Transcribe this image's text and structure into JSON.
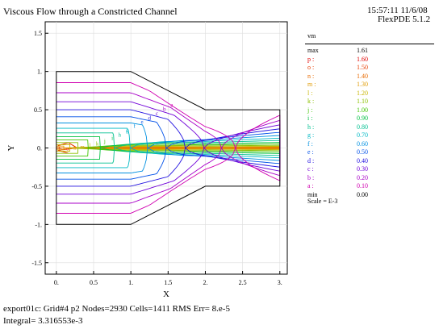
{
  "header": {
    "title": "Viscous Flow through a Constricted Channel",
    "timestamp": "15:57:11 11/6/08",
    "program": "FlexPDE 5.1.2"
  },
  "chart_data": {
    "type": "contour",
    "title": "Viscous Flow through a Constricted Channel",
    "xlabel": "X",
    "ylabel": "Y",
    "xlim": [
      -0.15,
      3.1
    ],
    "ylim": [
      -1.65,
      1.65
    ],
    "x_ticks": [
      "0.",
      "0.5",
      "1.",
      "1.5",
      "2.",
      "2.5",
      "3."
    ],
    "y_ticks": [
      "1.5",
      "1.",
      "0.5",
      "0.",
      "-0.5",
      "-1.",
      "-1.5"
    ],
    "variable": "vm",
    "scale": "Scale = E-3",
    "max": "1.61",
    "min": "0.00",
    "levels": [
      {
        "label": "p",
        "value": 1.6,
        "color": "#e00000"
      },
      {
        "label": "o",
        "value": 1.5,
        "color": "#e83c00"
      },
      {
        "label": "n",
        "value": 1.4,
        "color": "#e86a00"
      },
      {
        "label": "m",
        "value": 1.3,
        "color": "#e09a00"
      },
      {
        "label": "l",
        "value": 1.2,
        "color": "#c8b400"
      },
      {
        "label": "k",
        "value": 1.1,
        "color": "#8cc000"
      },
      {
        "label": "j",
        "value": 1.0,
        "color": "#40c400"
      },
      {
        "label": "i",
        "value": 0.9,
        "color": "#00c040"
      },
      {
        "label": "h",
        "value": 0.8,
        "color": "#00c090"
      },
      {
        "label": "g",
        "value": 0.7,
        "color": "#00b8c4"
      },
      {
        "label": "f",
        "value": 0.6,
        "color": "#0090e0"
      },
      {
        "label": "e",
        "value": 0.5,
        "color": "#0050e8"
      },
      {
        "label": "d",
        "value": 0.4,
        "color": "#2010e0"
      },
      {
        "label": "c",
        "value": 0.3,
        "color": "#7000d8"
      },
      {
        "label": "b",
        "value": 0.2,
        "color": "#a800c8"
      },
      {
        "label": "a",
        "value": 0.1,
        "color": "#d000b0"
      }
    ],
    "domain_outline": [
      [
        0,
        1
      ],
      [
        1,
        1
      ],
      [
        2,
        0.5
      ],
      [
        3,
        0.5
      ],
      [
        3,
        -0.5
      ],
      [
        2,
        -0.5
      ],
      [
        1,
        -1
      ],
      [
        0,
        -1
      ]
    ]
  },
  "legend": {
    "var_name": "vm",
    "max_label": "max",
    "min_label": "min"
  },
  "footer": {
    "line1": "export01c:  Grid#4  p2  Nodes=2930 Cells=1411 RMS Err= 8.e-5",
    "line2": "Integral=  3.316553e-3"
  }
}
